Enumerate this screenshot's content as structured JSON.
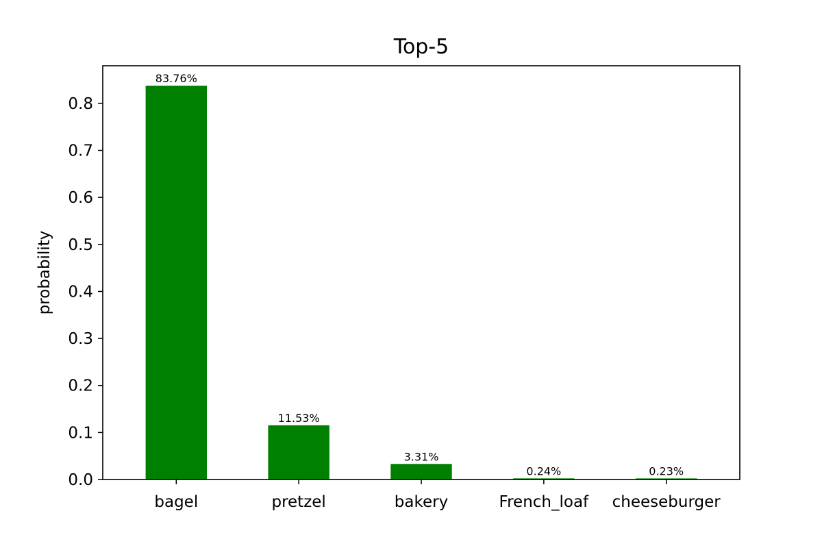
{
  "chart_data": {
    "type": "bar",
    "title": "Top-5",
    "xlabel": "",
    "ylabel": "probability",
    "categories": [
      "bagel",
      "pretzel",
      "bakery",
      "French_loaf",
      "cheeseburger"
    ],
    "values": [
      0.8376,
      0.1153,
      0.0331,
      0.0024,
      0.0023
    ],
    "value_labels": [
      "83.76%",
      "11.53%",
      "3.31%",
      "0.24%",
      "0.23%"
    ],
    "ylim": [
      0,
      0.88
    ],
    "yticks": [
      0.0,
      0.1,
      0.2,
      0.3,
      0.4,
      0.5,
      0.6,
      0.7,
      0.8
    ],
    "ytick_labels": [
      "0.0",
      "0.1",
      "0.2",
      "0.3",
      "0.4",
      "0.5",
      "0.6",
      "0.7",
      "0.8"
    ],
    "bar_color": "#008000",
    "grid": false,
    "legend": "none"
  }
}
